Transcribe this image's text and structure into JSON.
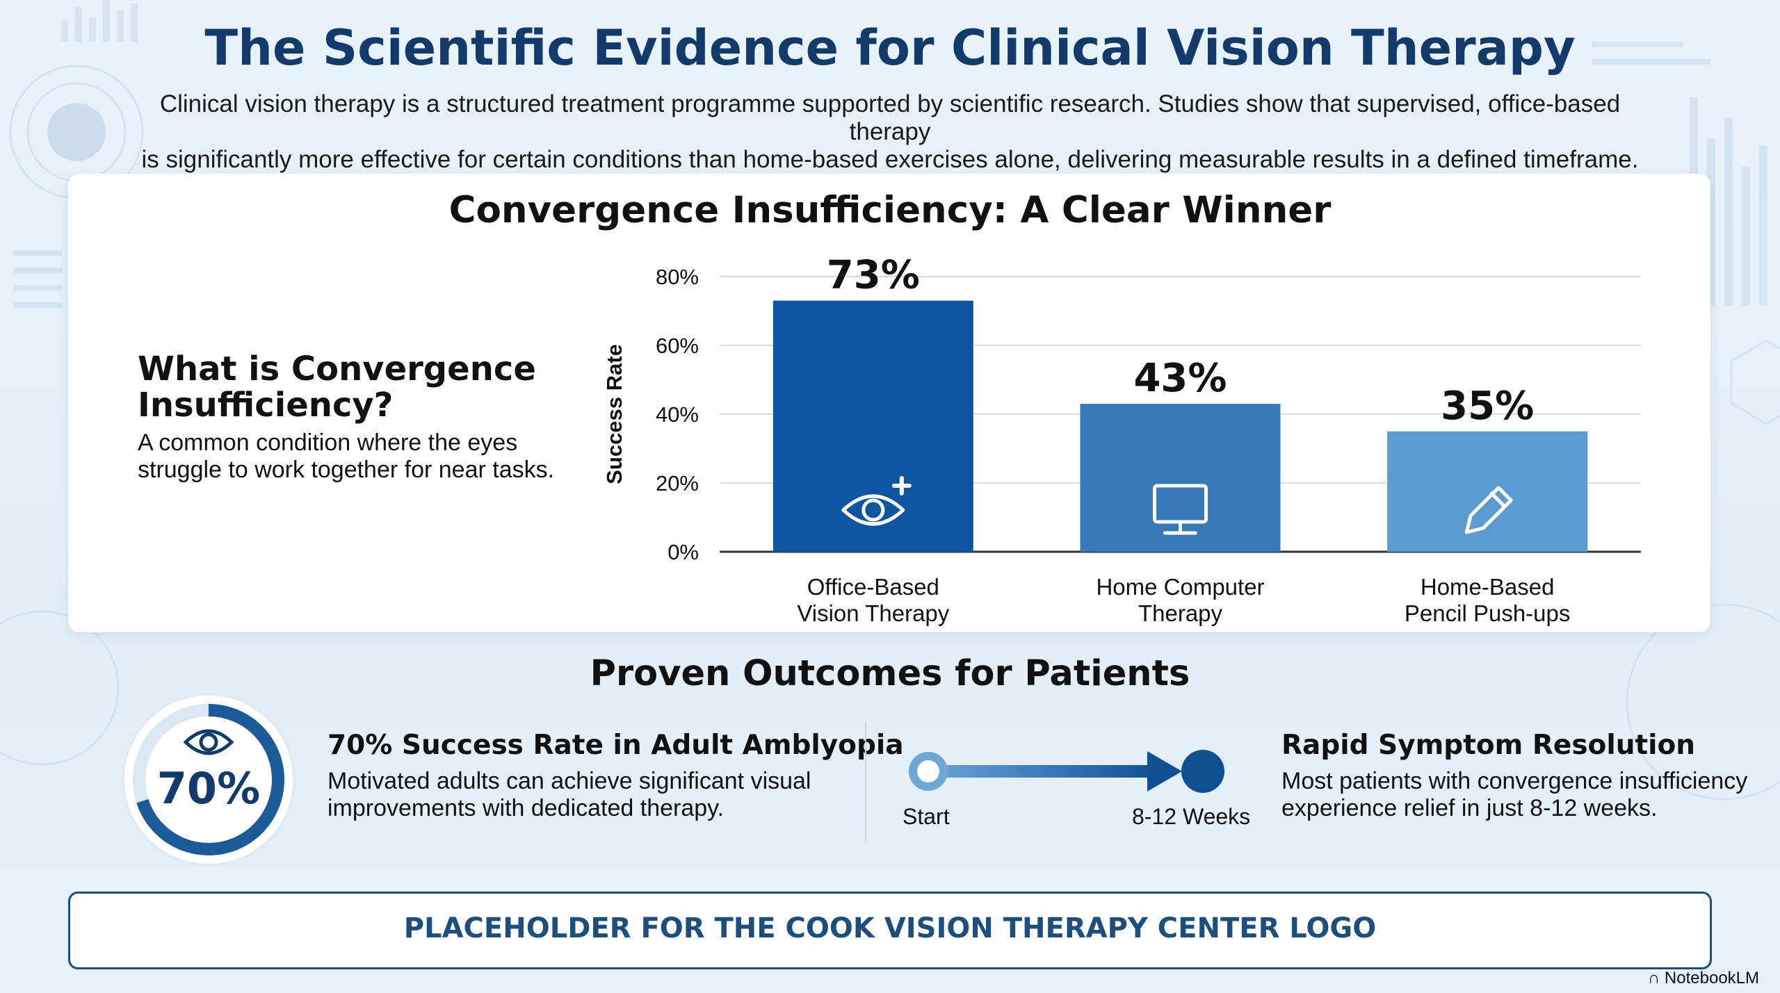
{
  "header": {
    "title": "The Scientific Evidence for Clinical Vision Therapy",
    "subtitle_line1": "Clinical vision therapy is a structured treatment programme supported by scientific research. Studies show that supervised, office-based therapy",
    "subtitle_line2": "is significantly more effective for certain conditions than home-based exercises alone, delivering measurable results in a defined timeframe."
  },
  "explainer": {
    "heading": "What is Convergence Insufficiency?",
    "description": "A common condition where the eyes struggle to work together for near tasks."
  },
  "chart_data": {
    "type": "bar",
    "title": "Convergence Insufficiency: A Clear Winner",
    "ylabel": "Success Rate",
    "xlabel": "",
    "ylim": [
      0,
      80
    ],
    "yticks": [
      0,
      20,
      40,
      60,
      80
    ],
    "ytick_labels": [
      "0%",
      "20%",
      "40%",
      "60%",
      "80%"
    ],
    "grid": true,
    "categories": [
      [
        "Office-Based",
        "Vision Therapy"
      ],
      [
        "Home Computer",
        "Therapy"
      ],
      [
        "Home-Based",
        "Pencil Push-ups"
      ]
    ],
    "values": [
      73,
      43,
      35
    ],
    "value_labels": [
      "73%",
      "43%",
      "35%"
    ],
    "bar_colors": [
      "#0d55a0",
      "#3679b8",
      "#5b9bd0"
    ],
    "bar_icons": [
      "eye-plus-icon",
      "monitor-icon",
      "pencil-icon"
    ]
  },
  "outcomes": {
    "title": "Proven Outcomes for Patients",
    "amblyopia": {
      "ring_value": "70%",
      "ring_fraction": 0.7,
      "ring_icon": "eye-icon",
      "heading": "70% Success Rate in Adult Amblyopia",
      "body_line1": "Motivated adults can achieve significant visual",
      "body_line2": "improvements with dedicated therapy."
    },
    "timeline": {
      "start_label": "Start",
      "end_label": "8-12 Weeks"
    },
    "resolution": {
      "heading": "Rapid Symptom Resolution",
      "body_line1": "Most patients with convergence insufficiency",
      "body_line2": "experience relief in just 8-12 weeks."
    }
  },
  "footer": {
    "logo_placeholder": "PLACEHOLDER FOR THE COOK VISION THERAPY CENTER LOGO",
    "credit": "NotebookLM"
  },
  "colors": {
    "title": "#123a6b",
    "accent_dark": "#0d55a0",
    "accent_mid": "#3679b8",
    "accent_light": "#5b9bd0",
    "logo_border": "#1d4e7e"
  }
}
